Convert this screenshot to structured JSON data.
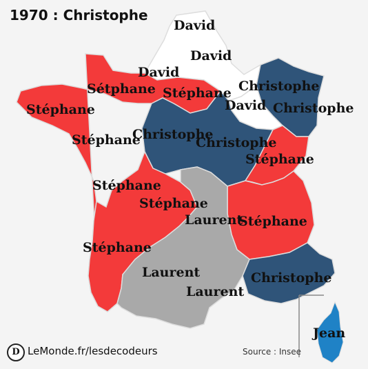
{
  "title": "1970 : Christophe",
  "colors": {
    "stephane": "#f33a3a",
    "christophe": "#2f5479",
    "laurent": "#a9a9a9",
    "david": "#ffffff",
    "jean": "#1f82c6",
    "border": "#dddddd"
  },
  "labels": {
    "david1": "David",
    "david2": "David",
    "david3": "David",
    "david4": "David",
    "stephane_typo": "Sétphane",
    "stephane1": "Stéphane",
    "stephane2": "Stéphane",
    "stephane3": "Stéphane",
    "stephane4": "Stéphane",
    "stephane5": "Stéphane",
    "stephane6": "Stéphane",
    "stephane7": "Stéphane",
    "stephane8": "Stéphane",
    "christophe1": "Christophe",
    "christophe2": "Christophe",
    "christophe3": "Christophe",
    "christophe4": "Christophe",
    "christophe5": "Christophe",
    "laurent1": "Laurent",
    "laurent2": "Laurent",
    "laurent3": "Laurent",
    "jean": "Jean"
  },
  "footer": {
    "logo_letter": "D",
    "site": "LeMonde.fr/lesdecodeurs",
    "source": "Source : Insee"
  }
}
